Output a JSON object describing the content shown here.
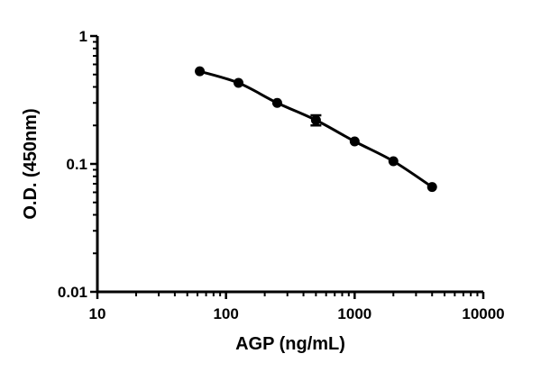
{
  "chart_data": {
    "type": "scatter",
    "xlabel": "AGP (ng/mL)",
    "ylabel": "O.D. (450nm)",
    "xscale": "log",
    "yscale": "log",
    "xlim": [
      10,
      10000
    ],
    "ylim": [
      0.01,
      1
    ],
    "xticks": [
      {
        "value": 10,
        "label": "10"
      },
      {
        "value": 100,
        "label": "100"
      },
      {
        "value": 1000,
        "label": "1000"
      },
      {
        "value": 10000,
        "label": "10000"
      }
    ],
    "yticks": [
      {
        "value": 0.01,
        "label": "0.01"
      },
      {
        "value": 0.1,
        "label": "0.1"
      },
      {
        "value": 1,
        "label": "1"
      }
    ],
    "grid": false,
    "series": [
      {
        "points": [
          {
            "x": 62.5,
            "y": 0.53
          },
          {
            "x": 125,
            "y": 0.43
          },
          {
            "x": 250,
            "y": 0.3
          },
          {
            "x": 500,
            "y": 0.22,
            "err_low": 0.2,
            "err_high": 0.24
          },
          {
            "x": 1000,
            "y": 0.15
          },
          {
            "x": 2000,
            "y": 0.105
          },
          {
            "x": 4000,
            "y": 0.066
          }
        ],
        "color": "#000000",
        "fit": "curve"
      }
    ]
  }
}
